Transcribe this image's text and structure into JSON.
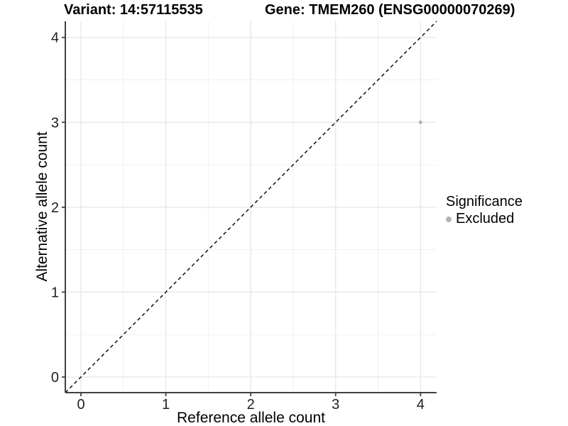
{
  "chart_data": {
    "type": "scatter",
    "title_left": "Variant: 14:57115535",
    "title_right": "Gene: TMEM260 (ENSG00000070269)",
    "xlabel": "Reference allele count",
    "ylabel": "Alternative allele count",
    "xlim": [
      -0.184,
      4.19
    ],
    "ylim": [
      -0.184,
      4.19
    ],
    "x_ticks": [
      0,
      1,
      2,
      3,
      4
    ],
    "y_ticks": [
      0,
      1,
      2,
      3,
      4
    ],
    "x_minor_ticks": [
      0.5,
      1.5,
      2.5,
      3.5
    ],
    "y_minor_ticks": [
      0.5,
      1.5,
      2.5,
      3.5
    ],
    "grid": true,
    "legend_position": "right",
    "reference_line": {
      "slope": 1,
      "intercept": 0,
      "style": "dashed",
      "color": "#000000"
    },
    "series": [
      {
        "name": "Excluded",
        "color": "#b4b4b4",
        "points": [
          {
            "x": 4,
            "y": 3
          }
        ]
      }
    ],
    "legend": {
      "title": "Significance",
      "items": [
        {
          "label": "Excluded",
          "color": "#b4b4b4"
        }
      ]
    },
    "colors": {
      "background": "#ffffff",
      "grid_major": "#e6e6e6",
      "grid_minor": "#f0f0f0",
      "axis_line": "#404040",
      "tick_text": "#1f1f1f",
      "point": "#b4b4b4"
    }
  }
}
